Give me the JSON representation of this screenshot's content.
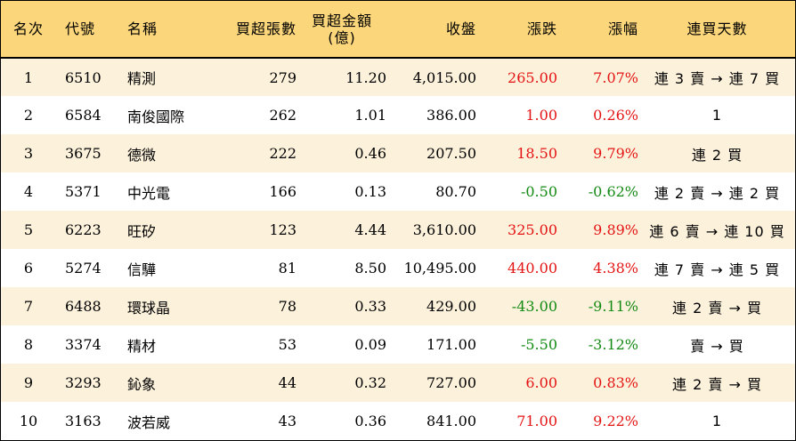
{
  "headers": {
    "rank": "名次",
    "code": "代號",
    "name": "名稱",
    "volume": "買超張數",
    "amount_line1": "買超金額",
    "amount_line2": "(億)",
    "close": "收盤",
    "change": "漲跌",
    "pct": "漲幅",
    "days": "連買天數"
  },
  "rows": [
    {
      "rank": "1",
      "code": "6510",
      "name": "精測",
      "volume": "279",
      "amount": "11.20",
      "close": "4,015.00",
      "change": "265.00",
      "pct": "7.07%",
      "days": "連 3 賣 → 連 7 買",
      "trend": "up"
    },
    {
      "rank": "2",
      "code": "6584",
      "name": "南俊國際",
      "volume": "262",
      "amount": "1.01",
      "close": "386.00",
      "change": "1.00",
      "pct": "0.26%",
      "days": "1",
      "trend": "up"
    },
    {
      "rank": "3",
      "code": "3675",
      "name": "德微",
      "volume": "222",
      "amount": "0.46",
      "close": "207.50",
      "change": "18.50",
      "pct": "9.79%",
      "days": "連 2 買",
      "trend": "up"
    },
    {
      "rank": "4",
      "code": "5371",
      "name": "中光電",
      "volume": "166",
      "amount": "0.13",
      "close": "80.70",
      "change": "-0.50",
      "pct": "-0.62%",
      "days": "連 2 賣 → 連 2 買",
      "trend": "down"
    },
    {
      "rank": "5",
      "code": "6223",
      "name": "旺矽",
      "volume": "123",
      "amount": "4.44",
      "close": "3,610.00",
      "change": "325.00",
      "pct": "9.89%",
      "days": "連 6 賣 → 連 10 買",
      "trend": "up"
    },
    {
      "rank": "6",
      "code": "5274",
      "name": "信驊",
      "volume": "81",
      "amount": "8.50",
      "close": "10,495.00",
      "change": "440.00",
      "pct": "4.38%",
      "days": "連 7 賣 → 連 5 買",
      "trend": "up"
    },
    {
      "rank": "7",
      "code": "6488",
      "name": "環球晶",
      "volume": "78",
      "amount": "0.33",
      "close": "429.00",
      "change": "-43.00",
      "pct": "-9.11%",
      "days": "連 2 賣 → 買",
      "trend": "down"
    },
    {
      "rank": "8",
      "code": "3374",
      "name": "精材",
      "volume": "53",
      "amount": "0.09",
      "close": "171.00",
      "change": "-5.50",
      "pct": "-3.12%",
      "days": "賣 → 買",
      "trend": "down"
    },
    {
      "rank": "9",
      "code": "3293",
      "name": "鈊象",
      "volume": "44",
      "amount": "0.32",
      "close": "727.00",
      "change": "6.00",
      "pct": "0.83%",
      "days": "連 2 賣 → 買",
      "trend": "up"
    },
    {
      "rank": "10",
      "code": "3163",
      "name": "波若威",
      "volume": "43",
      "amount": "0.36",
      "close": "841.00",
      "change": "71.00",
      "pct": "9.22%",
      "days": "1",
      "trend": "up"
    }
  ],
  "colors": {
    "up": "#e41414",
    "down": "#138a13",
    "header_bg": "#fcd67a",
    "stripe_bg": "#fcf1db"
  }
}
